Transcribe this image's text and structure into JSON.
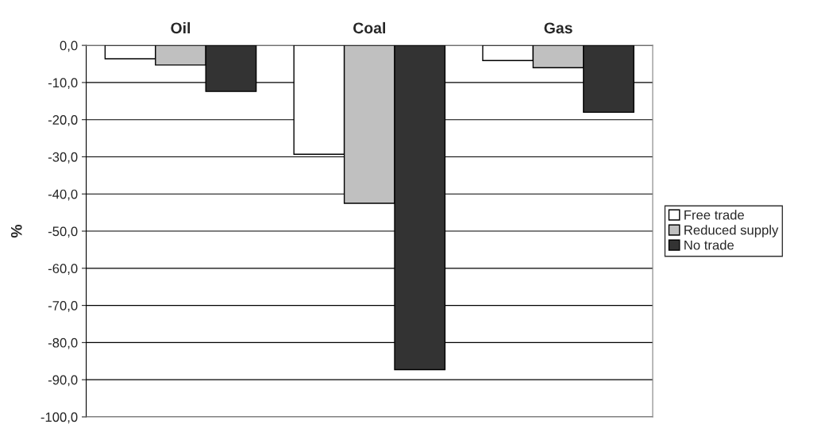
{
  "chart_data": {
    "type": "bar",
    "categories": [
      "Oil",
      "Coal",
      "Gas"
    ],
    "ylabel": "%",
    "series": [
      {
        "name": "Free trade",
        "color": "#ffffff",
        "values": [
          -3.6,
          -29.3,
          -4.1
        ]
      },
      {
        "name": "Reduced supply",
        "color": "#c0c0c0",
        "values": [
          -5.3,
          -42.5,
          -6.0
        ]
      },
      {
        "name": "No trade",
        "color": "#333333",
        "values": [
          -12.4,
          -87.3,
          -18.0
        ]
      }
    ],
    "ylim": [
      -100,
      0
    ],
    "yticks": [
      {
        "value": -100,
        "label": "-100,0"
      },
      {
        "value": -90,
        "label": "-90,0"
      },
      {
        "value": -80,
        "label": "-80,0"
      },
      {
        "value": -70,
        "label": "-70,0"
      },
      {
        "value": -60,
        "label": "-60,0"
      },
      {
        "value": -50,
        "label": "-50,0"
      },
      {
        "value": -40,
        "label": "-40,0"
      },
      {
        "value": -30,
        "label": "-30,0"
      },
      {
        "value": -20,
        "label": "-20,0"
      },
      {
        "value": -10,
        "label": "-10,0"
      },
      {
        "value": 0,
        "label": "0,0"
      }
    ],
    "grid": "y",
    "legend": "right"
  }
}
